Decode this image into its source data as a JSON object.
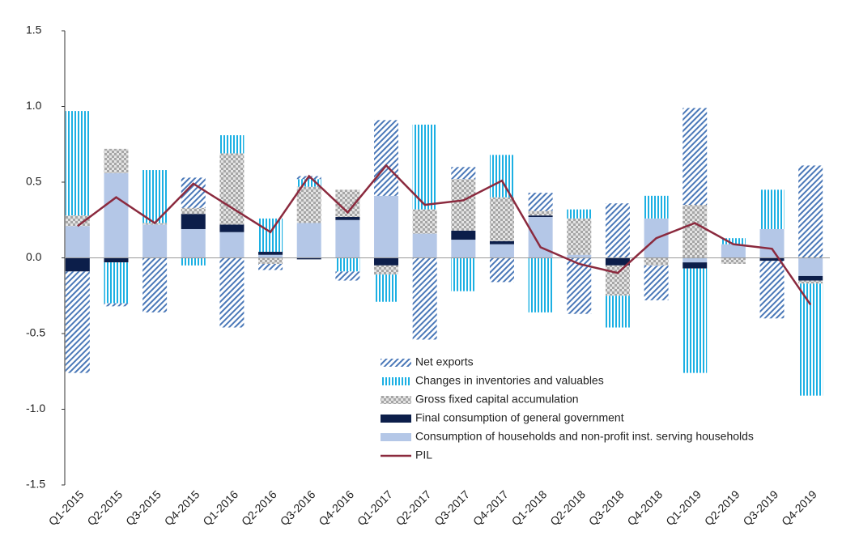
{
  "chart_data": {
    "type": "bar",
    "stacked": true,
    "categories": [
      "Q1-2015",
      "Q2-2015",
      "Q3-2015",
      "Q4-2015",
      "Q1-2016",
      "Q2-2016",
      "Q3-2016",
      "Q4-2016",
      "Q1-2017",
      "Q2-2017",
      "Q3-2017",
      "Q4-2017",
      "Q1-2018",
      "Q2-2018",
      "Q3-2018",
      "Q4-2018",
      "Q1-2019",
      "Q2-2019",
      "Q3-2019",
      "Q4-2019"
    ],
    "series": [
      {
        "name": "Consumption of households and non-profit inst. serving households",
        "color": "#b4c7e7",
        "pattern": "solid",
        "values": [
          0.21,
          0.56,
          0.22,
          0.19,
          0.17,
          0.02,
          0.23,
          0.25,
          0.41,
          0.16,
          0.12,
          0.09,
          0.27,
          0.02,
          0,
          0.26,
          -0.03,
          0.09,
          0.19,
          -0.12
        ]
      },
      {
        "name": "Final consumption of general government",
        "color": "#0c1e4a",
        "pattern": "solid",
        "values": [
          -0.09,
          -0.03,
          0,
          0.1,
          0.05,
          0.02,
          -0.01,
          0.02,
          -0.05,
          0,
          0.06,
          0.02,
          0.01,
          0,
          -0.05,
          0,
          -0.04,
          0,
          -0.02,
          -0.03
        ]
      },
      {
        "name": "Gross fixed capital accumulation",
        "color": "#a6a6a6",
        "pattern": "checker",
        "values": [
          0.07,
          0.16,
          0.01,
          0.04,
          0.47,
          -0.04,
          0.24,
          0.18,
          -0.06,
          0.16,
          0.34,
          0.29,
          0.03,
          0.24,
          -0.2,
          -0.05,
          0.35,
          -0.04,
          0,
          -0.02
        ]
      },
      {
        "name": "Changes in inventories and valuables",
        "color": "#1cb0e3",
        "pattern": "vertical",
        "values": [
          0.69,
          -0.27,
          0.35,
          -0.05,
          0.12,
          0.22,
          0.05,
          -0.09,
          -0.18,
          0.56,
          -0.22,
          0.28,
          -0.36,
          0.06,
          -0.21,
          0.15,
          -0.69,
          0.04,
          0.26,
          -0.74
        ]
      },
      {
        "name": "Net exports",
        "color": "#4a78b8",
        "pattern": "diagonal",
        "values": [
          -0.67,
          -0.02,
          -0.36,
          0.2,
          -0.46,
          -0.04,
          0.02,
          -0.06,
          0.5,
          -0.54,
          0.08,
          -0.16,
          0.12,
          -0.37,
          0.36,
          -0.23,
          0.64,
          0,
          -0.38,
          0.61
        ]
      },
      {
        "name": "PIL",
        "color": "#8b2a3e",
        "type": "line",
        "values": [
          0.21,
          0.4,
          0.23,
          0.49,
          0.33,
          0.17,
          0.54,
          0.3,
          0.61,
          0.35,
          0.38,
          0.51,
          0.07,
          -0.04,
          -0.1,
          0.13,
          0.23,
          0.09,
          0.06,
          -0.31
        ]
      }
    ],
    "legend_order": [
      4,
      3,
      2,
      1,
      0,
      5
    ],
    "ylim": [
      -1.5,
      1.5
    ],
    "yticks": [
      -1.5,
      {
        "value": -1.0,
        "label": "-1.0"
      },
      -0.5,
      {
        "value": 0.0,
        "label": "0.0"
      },
      0.5,
      {
        "value": 1.0,
        "label": "1.0"
      },
      1.5
    ]
  }
}
